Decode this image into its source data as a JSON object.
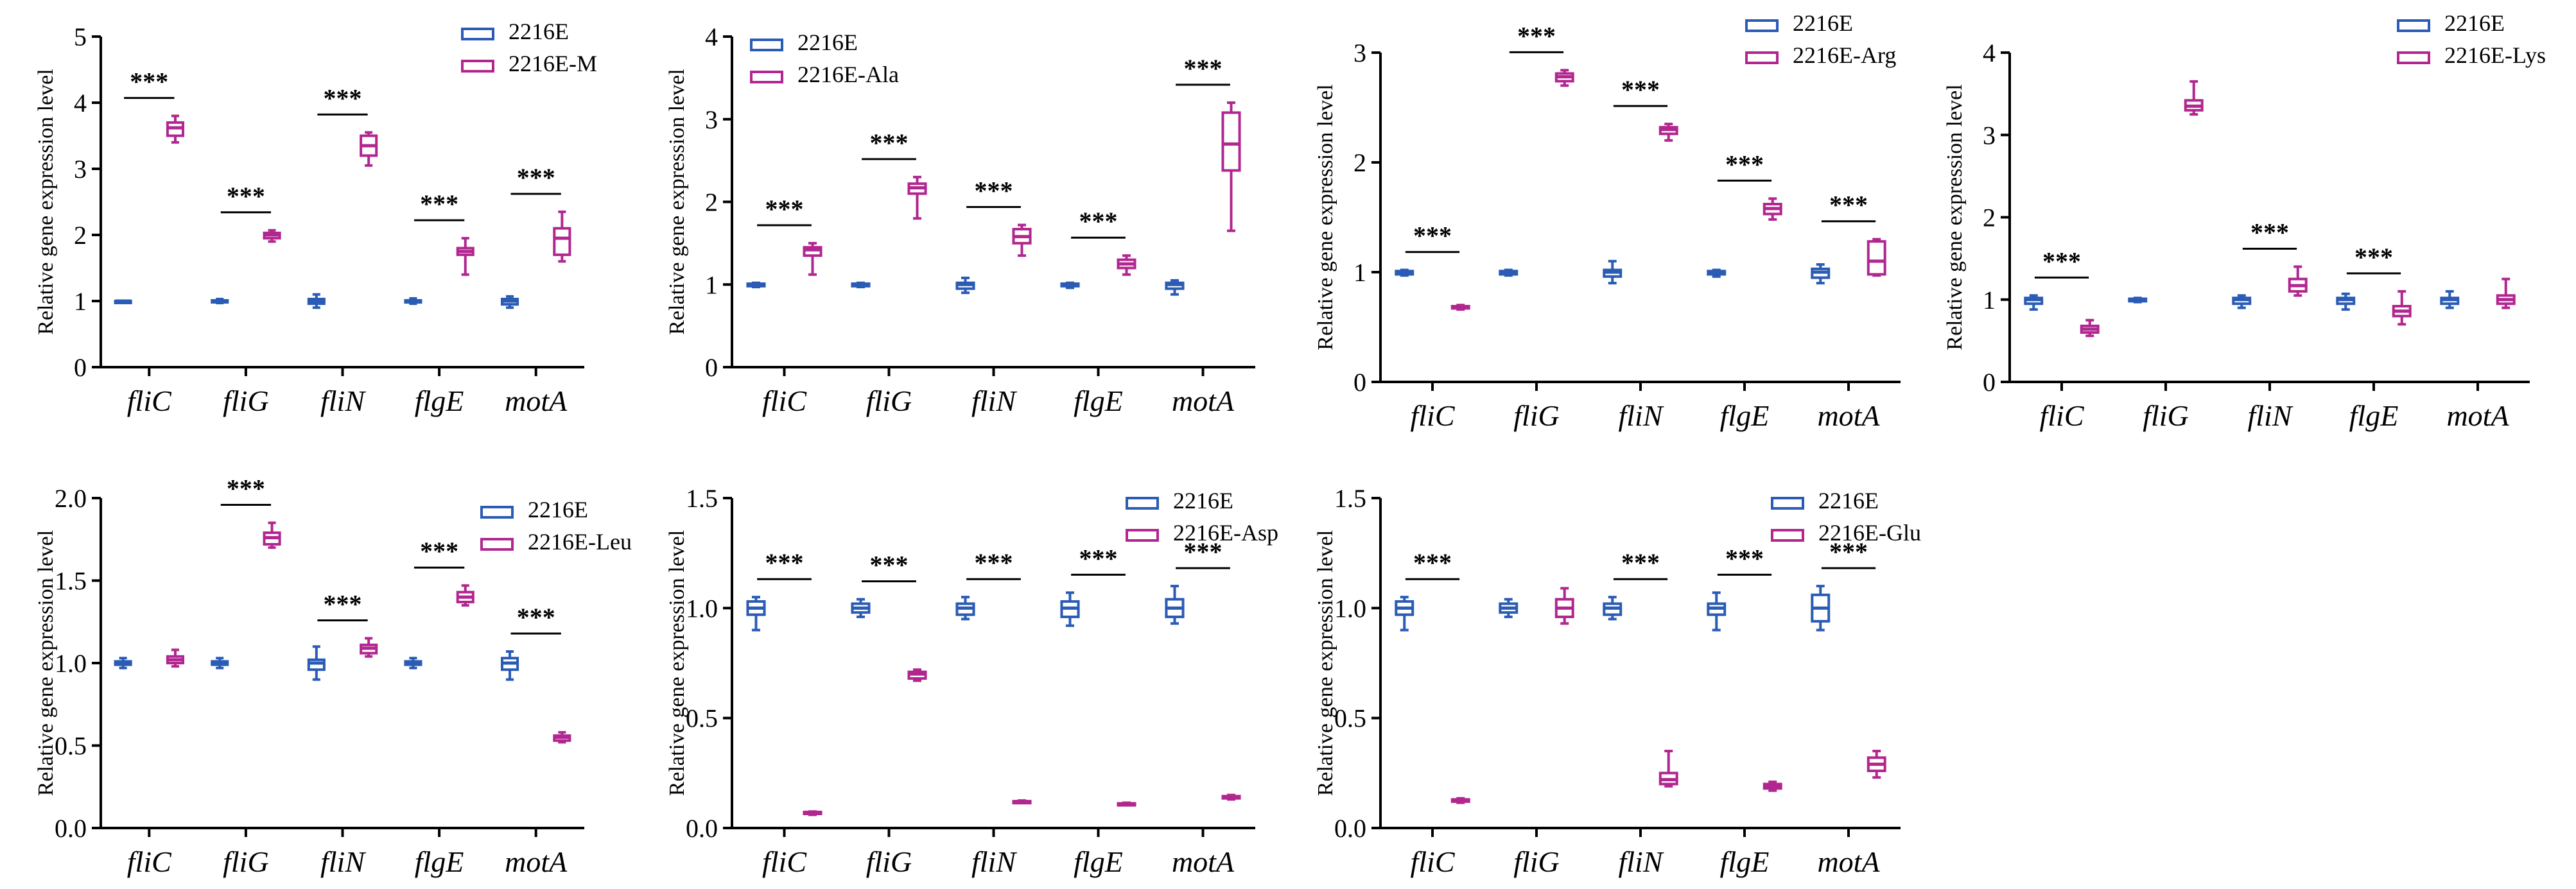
{
  "figure": {
    "colors": {
      "control": "#2a5bb5",
      "treatment": "#b1268f",
      "axis": "#000000"
    },
    "significance_symbol": "***"
  },
  "chart_data": [
    {
      "id": "panel-m",
      "type": "boxplot",
      "title": "",
      "xlabel": "",
      "ylabel": "Relative gene expression level",
      "ylim": [
        0,
        5
      ],
      "yticks": [
        "0",
        "1",
        "2",
        "3",
        "4",
        "5"
      ],
      "categories": [
        "fliC",
        "fliG",
        "fliN",
        "flgE",
        "motA"
      ],
      "legend": [
        "2216E",
        "2216E-M"
      ],
      "significance": [
        "***",
        "***",
        "***",
        "***",
        "***"
      ],
      "series": [
        {
          "name": "2216E",
          "boxes": [
            [
              1.0,
              1.0,
              1.0,
              1.0,
              1.0
            ],
            [
              0.97,
              0.99,
              1.0,
              1.01,
              1.03
            ],
            [
              0.9,
              0.96,
              1.0,
              1.03,
              1.1
            ],
            [
              0.96,
              0.98,
              1.0,
              1.01,
              1.04
            ],
            [
              0.9,
              0.95,
              1.0,
              1.03,
              1.07
            ]
          ]
        },
        {
          "name": "2216E-M",
          "boxes": [
            [
              3.4,
              3.5,
              3.62,
              3.7,
              3.8
            ],
            [
              1.9,
              1.95,
              2.0,
              2.03,
              2.07
            ],
            [
              3.05,
              3.2,
              3.35,
              3.5,
              3.55
            ],
            [
              1.4,
              1.7,
              1.75,
              1.8,
              1.95
            ],
            [
              1.6,
              1.7,
              1.95,
              2.1,
              2.35
            ]
          ]
        }
      ]
    },
    {
      "id": "panel-ala",
      "type": "boxplot",
      "title": "",
      "xlabel": "",
      "ylabel": "Relative gene expression level",
      "ylim": [
        0,
        4
      ],
      "yticks": [
        "0",
        "1",
        "2",
        "3",
        "4"
      ],
      "categories": [
        "fliC",
        "fliG",
        "fliN",
        "flgE",
        "motA"
      ],
      "legend": [
        "2216E",
        "2216E-Ala"
      ],
      "significance": [
        "***",
        "***",
        "***",
        "***",
        "***"
      ],
      "series": [
        {
          "name": "2216E",
          "boxes": [
            [
              0.97,
              0.98,
              1.0,
              1.01,
              1.02
            ],
            [
              0.97,
              0.98,
              1.0,
              1.01,
              1.02
            ],
            [
              0.9,
              0.95,
              1.0,
              1.02,
              1.08
            ],
            [
              0.96,
              0.98,
              1.0,
              1.01,
              1.02
            ],
            [
              0.88,
              0.95,
              1.0,
              1.02,
              1.05
            ]
          ]
        },
        {
          "name": "2216E-Ala",
          "boxes": [
            [
              1.12,
              1.35,
              1.42,
              1.45,
              1.5
            ],
            [
              1.8,
              2.1,
              2.17,
              2.22,
              2.3
            ],
            [
              1.35,
              1.5,
              1.58,
              1.67,
              1.72
            ],
            [
              1.12,
              1.2,
              1.25,
              1.3,
              1.35
            ],
            [
              1.65,
              2.38,
              2.7,
              3.08,
              3.2
            ]
          ]
        }
      ]
    },
    {
      "id": "panel-arg",
      "type": "boxplot",
      "title": "",
      "xlabel": "",
      "ylabel": "Relative gene expression level",
      "ylim": [
        0,
        3
      ],
      "yticks": [
        "0",
        "1",
        "2",
        "3"
      ],
      "categories": [
        "fliC",
        "fliG",
        "fliN",
        "flgE",
        "motA"
      ],
      "legend": [
        "2216E",
        "2216E-Arg"
      ],
      "significance": [
        "***",
        "***",
        "***",
        "***",
        "***"
      ],
      "series": [
        {
          "name": "2216E",
          "boxes": [
            [
              0.97,
              0.98,
              1.0,
              1.01,
              1.02
            ],
            [
              0.97,
              0.98,
              1.0,
              1.01,
              1.02
            ],
            [
              0.9,
              0.96,
              1.0,
              1.02,
              1.1
            ],
            [
              0.96,
              0.98,
              1.0,
              1.01,
              1.02
            ],
            [
              0.9,
              0.95,
              1.0,
              1.03,
              1.07
            ]
          ]
        },
        {
          "name": "2216E-Arg",
          "boxes": [
            [
              0.66,
              0.67,
              0.68,
              0.69,
              0.7
            ],
            [
              2.7,
              2.74,
              2.78,
              2.81,
              2.84
            ],
            [
              2.2,
              2.26,
              2.3,
              2.32,
              2.35
            ],
            [
              1.48,
              1.53,
              1.58,
              1.62,
              1.67
            ],
            [
              0.97,
              0.98,
              1.1,
              1.28,
              1.3
            ]
          ]
        }
      ]
    },
    {
      "id": "panel-lys",
      "type": "boxplot",
      "title": "",
      "xlabel": "",
      "ylabel": "Relative gene expression level",
      "ylim": [
        0,
        4
      ],
      "yticks": [
        "0",
        "1",
        "2",
        "3",
        "4"
      ],
      "categories": [
        "fliC",
        "fliG",
        "fliN",
        "flgE",
        "motA"
      ],
      "legend": [
        "2216E",
        "2216E-Lys"
      ],
      "significance": [
        "***",
        "",
        "***",
        "***",
        ""
      ],
      "series": [
        {
          "name": "2216E",
          "boxes": [
            [
              0.88,
              0.95,
              1.0,
              1.02,
              1.05
            ],
            [
              0.97,
              0.98,
              1.0,
              1.01,
              1.02
            ],
            [
              0.9,
              0.95,
              1.0,
              1.02,
              1.05
            ],
            [
              0.88,
              0.95,
              1.0,
              1.02,
              1.07
            ],
            [
              0.9,
              0.95,
              1.0,
              1.02,
              1.1
            ]
          ]
        },
        {
          "name": "2216E-Lys",
          "boxes": [
            [
              0.56,
              0.6,
              0.64,
              0.68,
              0.75
            ],
            [
              3.25,
              3.3,
              3.35,
              3.42,
              3.65
            ],
            [
              1.05,
              1.1,
              1.17,
              1.25,
              1.4
            ],
            [
              0.7,
              0.8,
              0.86,
              0.92,
              1.1
            ],
            [
              0.9,
              0.95,
              1.0,
              1.05,
              1.25
            ]
          ]
        }
      ]
    },
    {
      "id": "panel-leu",
      "type": "boxplot",
      "title": "",
      "xlabel": "",
      "ylabel": "Relative gene expression level",
      "ylim": [
        0,
        2
      ],
      "yticks": [
        "0.0",
        "0.5",
        "1.0",
        "1.5",
        "2.0"
      ],
      "categories": [
        "fliC",
        "fliG",
        "fliN",
        "flgE",
        "motA"
      ],
      "legend": [
        "2216E",
        "2216E-Leu"
      ],
      "significance": [
        "",
        "***",
        "***",
        "***",
        "***"
      ],
      "series": [
        {
          "name": "2216E",
          "boxes": [
            [
              0.97,
              0.99,
              1.0,
              1.01,
              1.03
            ],
            [
              0.97,
              0.99,
              1.0,
              1.01,
              1.03
            ],
            [
              0.9,
              0.96,
              1.0,
              1.02,
              1.1
            ],
            [
              0.97,
              0.99,
              1.0,
              1.01,
              1.03
            ],
            [
              0.9,
              0.96,
              1.0,
              1.03,
              1.07
            ]
          ]
        },
        {
          "name": "2216E-Leu",
          "boxes": [
            [
              0.98,
              1.0,
              1.02,
              1.04,
              1.08
            ],
            [
              1.7,
              1.72,
              1.76,
              1.79,
              1.85
            ],
            [
              1.04,
              1.06,
              1.09,
              1.11,
              1.15
            ],
            [
              1.35,
              1.37,
              1.4,
              1.43,
              1.47
            ],
            [
              0.52,
              0.53,
              0.55,
              0.56,
              0.58
            ]
          ]
        }
      ]
    },
    {
      "id": "panel-asp",
      "type": "boxplot",
      "title": "",
      "xlabel": "",
      "ylabel": "Relative gene expression level",
      "ylim": [
        0,
        1.5
      ],
      "yticks": [
        "0.0",
        "0.5",
        "1.0",
        "1.5"
      ],
      "categories": [
        "fliC",
        "fliG",
        "fliN",
        "flgE",
        "motA"
      ],
      "legend": [
        "2216E",
        "2216E-Asp"
      ],
      "significance": [
        "***",
        "***",
        "***",
        "***",
        "***"
      ],
      "series": [
        {
          "name": "2216E",
          "boxes": [
            [
              0.9,
              0.97,
              1.0,
              1.03,
              1.05
            ],
            [
              0.96,
              0.98,
              1.0,
              1.02,
              1.04
            ],
            [
              0.95,
              0.97,
              1.0,
              1.02,
              1.05
            ],
            [
              0.92,
              0.96,
              1.0,
              1.03,
              1.07
            ],
            [
              0.93,
              0.96,
              1.0,
              1.04,
              1.1
            ]
          ]
        },
        {
          "name": "2216E-Asp",
          "boxes": [
            [
              0.06,
              0.065,
              0.07,
              0.073,
              0.075
            ],
            [
              0.67,
              0.68,
              0.7,
              0.71,
              0.72
            ],
            [
              0.115,
              0.118,
              0.12,
              0.122,
              0.125
            ],
            [
              0.105,
              0.108,
              0.11,
              0.112,
              0.115
            ],
            [
              0.13,
              0.135,
              0.14,
              0.145,
              0.15
            ]
          ]
        }
      ]
    },
    {
      "id": "panel-glu",
      "type": "boxplot",
      "title": "",
      "xlabel": "",
      "ylabel": "Relative gene expression level",
      "ylim": [
        0,
        1.5
      ],
      "yticks": [
        "0.0",
        "0.5",
        "1.0",
        "1.5"
      ],
      "categories": [
        "fliC",
        "fliG",
        "fliN",
        "flgE",
        "motA"
      ],
      "legend": [
        "2216E",
        "2216E-Glu"
      ],
      "significance": [
        "***",
        "",
        "***",
        "***",
        "***"
      ],
      "series": [
        {
          "name": "2216E",
          "boxes": [
            [
              0.9,
              0.97,
              1.0,
              1.03,
              1.05
            ],
            [
              0.96,
              0.98,
              1.0,
              1.02,
              1.04
            ],
            [
              0.95,
              0.97,
              1.0,
              1.02,
              1.05
            ],
            [
              0.9,
              0.97,
              1.0,
              1.02,
              1.07
            ],
            [
              0.9,
              0.94,
              1.0,
              1.06,
              1.1
            ]
          ]
        },
        {
          "name": "2216E-Glu",
          "boxes": [
            [
              0.115,
              0.12,
              0.125,
              0.13,
              0.135
            ],
            [
              0.93,
              0.96,
              1.0,
              1.04,
              1.09
            ],
            [
              0.19,
              0.2,
              0.22,
              0.25,
              0.35
            ],
            [
              0.17,
              0.18,
              0.19,
              0.2,
              0.21
            ],
            [
              0.23,
              0.26,
              0.29,
              0.32,
              0.35
            ]
          ]
        }
      ]
    }
  ]
}
